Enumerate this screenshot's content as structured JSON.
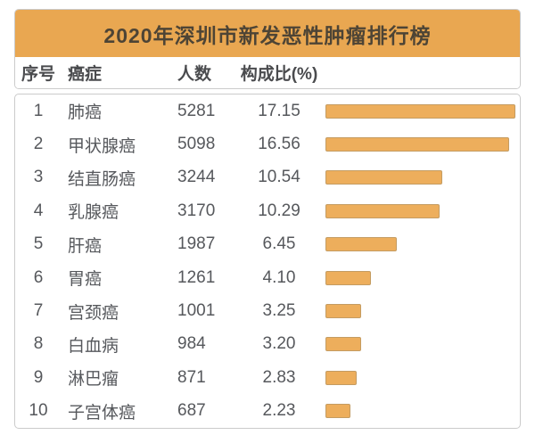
{
  "title": "2020年深圳市新发恶性肿瘤排行榜",
  "columns": {
    "rank": "序号",
    "cancer": "癌症",
    "count": "人数",
    "pct": "构成比(%)"
  },
  "rows": [
    {
      "rank": "1",
      "cancer": "肺癌",
      "count": "5281",
      "pct": "17.15"
    },
    {
      "rank": "2",
      "cancer": "甲状腺癌",
      "count": "5098",
      "pct": "16.56"
    },
    {
      "rank": "3",
      "cancer": "结直肠癌",
      "count": "3244",
      "pct": "10.54"
    },
    {
      "rank": "4",
      "cancer": "乳腺癌",
      "count": "3170",
      "pct": "10.29"
    },
    {
      "rank": "5",
      "cancer": "肝癌",
      "count": "1987",
      "pct": "6.45"
    },
    {
      "rank": "6",
      "cancer": "胃癌",
      "count": "1261",
      "pct": "4.10"
    },
    {
      "rank": "7",
      "cancer": "宫颈癌",
      "count": "1001",
      "pct": "3.25"
    },
    {
      "rank": "8",
      "cancer": "白血病",
      "count": "984",
      "pct": "3.20"
    },
    {
      "rank": "9",
      "cancer": "淋巴瘤",
      "count": "871",
      "pct": "2.83"
    },
    {
      "rank": "10",
      "cancer": "子宫体癌",
      "count": "687",
      "pct": "2.23"
    }
  ],
  "chart_data": {
    "type": "bar",
    "orientation": "horizontal",
    "title": "2020年深圳市新发恶性肿瘤排行榜",
    "categories": [
      "肺癌",
      "甲状腺癌",
      "结直肠癌",
      "乳腺癌",
      "肝癌",
      "胃癌",
      "宫颈癌",
      "白血病",
      "淋巴瘤",
      "子宫体癌"
    ],
    "series": [
      {
        "name": "人数",
        "values": [
          5281,
          5098,
          3244,
          3170,
          1987,
          1261,
          1001,
          984,
          871,
          687
        ]
      },
      {
        "name": "构成比(%)",
        "values": [
          17.15,
          16.56,
          10.54,
          10.29,
          6.45,
          4.1,
          3.25,
          3.2,
          2.83,
          2.23
        ]
      }
    ],
    "bar_series": "构成比(%)",
    "xlim": [
      0,
      17.15
    ],
    "grid": false,
    "legend": "none",
    "bar_color": "#edae5c"
  },
  "colors": {
    "banner_orange": "#e9a751",
    "bar_fill": "#edae5c",
    "bar_border": "#c49c62",
    "card_border": "#cbcbcb",
    "title_text": "#4d4435",
    "header_text": "#4a4b4e",
    "body_text": "#56585c"
  }
}
